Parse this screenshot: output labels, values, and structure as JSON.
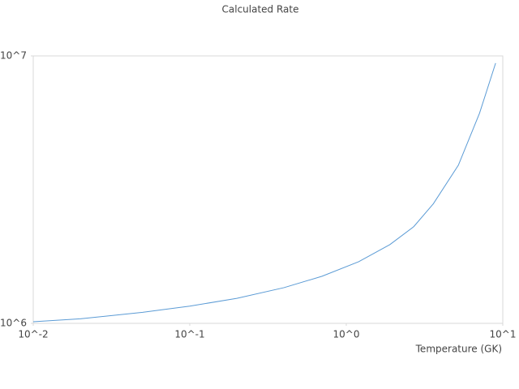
{
  "chart_data": {
    "type": "line",
    "title": "Calculated Rate",
    "x_label": "Temperature (GK)",
    "log_x": true,
    "log_y": true,
    "x": [
      0.01,
      0.02,
      0.05,
      0.1,
      0.2,
      0.4,
      0.7,
      1.2,
      1.9,
      2.7,
      3.6,
      5.2,
      7.1,
      9.0
    ],
    "series": [
      {
        "name": "Calculated Rate",
        "color": "#5b9bd5",
        "values": [
          1014000,
          1040000,
          1100000,
          1160000,
          1240000,
          1360000,
          1500000,
          1700000,
          1970000,
          2300000,
          2800000,
          3900000,
          6100000,
          9400000
        ]
      }
    ],
    "xlim": [
      0.01,
      10
    ],
    "ylim": [
      1000000,
      10000000
    ],
    "xticks": [
      {
        "value": 0.01,
        "label": "10^-2"
      },
      {
        "value": 0.1,
        "label": "10^-1"
      },
      {
        "value": 1,
        "label": "10^0"
      },
      {
        "value": 10,
        "label": "10^1"
      }
    ],
    "yticks": [
      {
        "value": 1000000,
        "label": "10^6"
      },
      {
        "value": 10000000,
        "label": "10^7"
      }
    ]
  }
}
